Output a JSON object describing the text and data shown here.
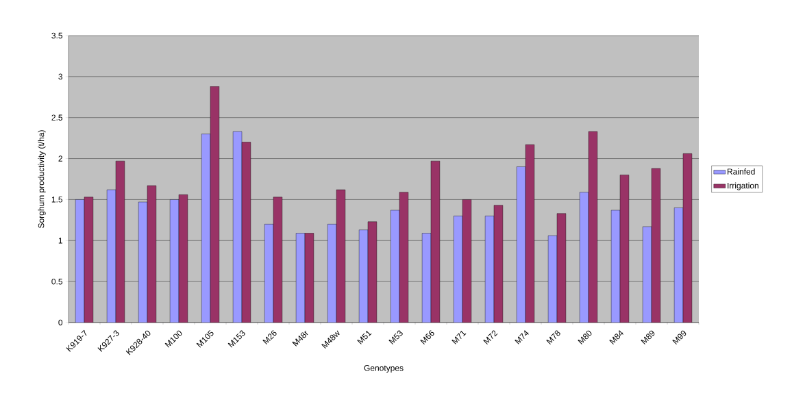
{
  "chart_data": {
    "type": "bar",
    "xlabel": "Genotypes",
    "ylabel": "Sorghum productivity (t/ha)",
    "categories": [
      "K919-7",
      "K927-3",
      "K928-40",
      "M100",
      "M105",
      "M153",
      "M26",
      "M48r",
      "M48w",
      "M51",
      "M53",
      "M66",
      "M71",
      "M72",
      "M74",
      "M78",
      "M80",
      "M84",
      "M89",
      "M99"
    ],
    "series": [
      {
        "name": "Rainfed",
        "color": "#9999ff",
        "values": [
          1.5,
          1.62,
          1.47,
          1.5,
          2.3,
          2.33,
          1.2,
          1.09,
          1.2,
          1.13,
          1.37,
          1.09,
          1.3,
          1.3,
          1.9,
          1.06,
          1.59,
          1.37,
          1.17,
          1.4
        ]
      },
      {
        "name": "Irrigation",
        "color": "#993366",
        "values": [
          1.53,
          1.97,
          1.67,
          1.56,
          2.88,
          2.2,
          1.53,
          1.09,
          1.62,
          1.23,
          1.59,
          1.97,
          1.5,
          1.43,
          2.17,
          1.33,
          2.33,
          1.8,
          1.88,
          2.06
        ]
      }
    ],
    "ylim": [
      0,
      3.5
    ],
    "yticks": [
      0,
      0.5,
      1,
      1.5,
      2,
      2.5,
      3,
      3.5
    ],
    "grid": "y",
    "legend": "right"
  }
}
